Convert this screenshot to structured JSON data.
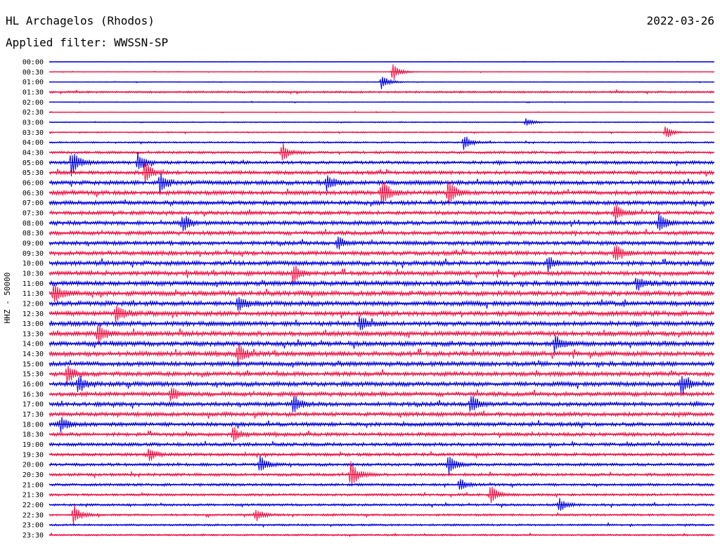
{
  "header": {
    "station": "HL Archagelos (Rhodos)",
    "date": "2022-03-26",
    "filter": "Applied filter: WWSSN-SP"
  },
  "chart_data": {
    "type": "line",
    "title": "HL Archagelos (Rhodos)",
    "subtitle": "Applied filter: WWSSN-SP",
    "date": "2022-03-26",
    "ylabel": "HHZ - 50000",
    "row_labels": [
      "00:00",
      "00:30",
      "01:00",
      "01:30",
      "02:00",
      "02:30",
      "03:00",
      "03:30",
      "04:00",
      "04:30",
      "05:00",
      "05:30",
      "06:00",
      "06:30",
      "07:00",
      "07:30",
      "08:00",
      "08:30",
      "09:00",
      "09:30",
      "10:00",
      "10:30",
      "11:00",
      "11:30",
      "12:00",
      "12:30",
      "13:00",
      "13:30",
      "14:00",
      "14:30",
      "15:00",
      "15:30",
      "16:00",
      "16:30",
      "17:00",
      "17:30",
      "18:00",
      "18:30",
      "19:00",
      "19:30",
      "20:00",
      "20:30",
      "21:00",
      "21:30",
      "22:00",
      "22:30",
      "23:00",
      "23:30"
    ],
    "colors": [
      "#0000dd",
      "#ee1144"
    ],
    "x_range_minutes": [
      0,
      30
    ],
    "trace_noise_level": [
      0.3,
      0.4,
      0.5,
      1.2,
      0.5,
      0.4,
      0.6,
      0.8,
      1.0,
      1.5,
      2.0,
      2.2,
      2.6,
      2.6,
      2.5,
      2.3,
      2.6,
      2.4,
      2.5,
      2.6,
      2.8,
      2.7,
      2.9,
      3.0,
      3.0,
      3.0,
      2.9,
      3.0,
      2.9,
      3.0,
      2.8,
      2.7,
      2.8,
      2.6,
      2.6,
      2.5,
      2.4,
      2.2,
      2.1,
      1.9,
      1.8,
      1.8,
      1.6,
      1.5,
      1.4,
      1.3,
      1.2,
      1.1
    ],
    "events": [
      {
        "row": 1,
        "minute": 15.5,
        "amplitude": 14
      },
      {
        "row": 2,
        "minute": 15.0,
        "amplitude": 12
      },
      {
        "row": 6,
        "minute": 21.5,
        "amplitude": 6
      },
      {
        "row": 7,
        "minute": 27.8,
        "amplitude": 10
      },
      {
        "row": 8,
        "minute": 18.7,
        "amplitude": 12
      },
      {
        "row": 9,
        "minute": 10.5,
        "amplitude": 16
      },
      {
        "row": 10,
        "minute": 1.0,
        "amplitude": 20
      },
      {
        "row": 10,
        "minute": 4.0,
        "amplitude": 14
      },
      {
        "row": 11,
        "minute": 4.3,
        "amplitude": 18
      },
      {
        "row": 12,
        "minute": 5.0,
        "amplitude": 14
      },
      {
        "row": 12,
        "minute": 12.5,
        "amplitude": 12
      },
      {
        "row": 13,
        "minute": 15.0,
        "amplitude": 22
      },
      {
        "row": 13,
        "minute": 18.0,
        "amplitude": 20
      },
      {
        "row": 15,
        "minute": 25.5,
        "amplitude": 14
      },
      {
        "row": 16,
        "minute": 6.0,
        "amplitude": 14
      },
      {
        "row": 16,
        "minute": 27.5,
        "amplitude": 14
      },
      {
        "row": 18,
        "minute": 13.0,
        "amplitude": 10
      },
      {
        "row": 19,
        "minute": 25.5,
        "amplitude": 16
      },
      {
        "row": 20,
        "minute": 22.5,
        "amplitude": 10
      },
      {
        "row": 21,
        "minute": 11.0,
        "amplitude": 14
      },
      {
        "row": 22,
        "minute": 26.5,
        "amplitude": 10
      },
      {
        "row": 23,
        "minute": 0.2,
        "amplitude": 16
      },
      {
        "row": 24,
        "minute": 8.5,
        "amplitude": 14
      },
      {
        "row": 25,
        "minute": 3.0,
        "amplitude": 16
      },
      {
        "row": 26,
        "minute": 14.0,
        "amplitude": 12
      },
      {
        "row": 27,
        "minute": 2.2,
        "amplitude": 14
      },
      {
        "row": 28,
        "minute": 22.8,
        "amplitude": 14
      },
      {
        "row": 29,
        "minute": 8.5,
        "amplitude": 16
      },
      {
        "row": 31,
        "minute": 0.8,
        "amplitude": 14
      },
      {
        "row": 32,
        "minute": 1.3,
        "amplitude": 14
      },
      {
        "row": 32,
        "minute": 28.5,
        "amplitude": 16
      },
      {
        "row": 33,
        "minute": 5.5,
        "amplitude": 12
      },
      {
        "row": 34,
        "minute": 11.0,
        "amplitude": 14
      },
      {
        "row": 34,
        "minute": 19.0,
        "amplitude": 16
      },
      {
        "row": 36,
        "minute": 0.5,
        "amplitude": 12
      },
      {
        "row": 37,
        "minute": 8.3,
        "amplitude": 12
      },
      {
        "row": 39,
        "minute": 4.5,
        "amplitude": 10
      },
      {
        "row": 40,
        "minute": 9.5,
        "amplitude": 14
      },
      {
        "row": 40,
        "minute": 18.0,
        "amplitude": 16
      },
      {
        "row": 41,
        "minute": 13.6,
        "amplitude": 20
      },
      {
        "row": 42,
        "minute": 18.5,
        "amplitude": 10
      },
      {
        "row": 43,
        "minute": 19.9,
        "amplitude": 14
      },
      {
        "row": 44,
        "minute": 23.0,
        "amplitude": 10
      },
      {
        "row": 45,
        "minute": 1.1,
        "amplitude": 16
      },
      {
        "row": 45,
        "minute": 9.3,
        "amplitude": 10
      }
    ]
  }
}
